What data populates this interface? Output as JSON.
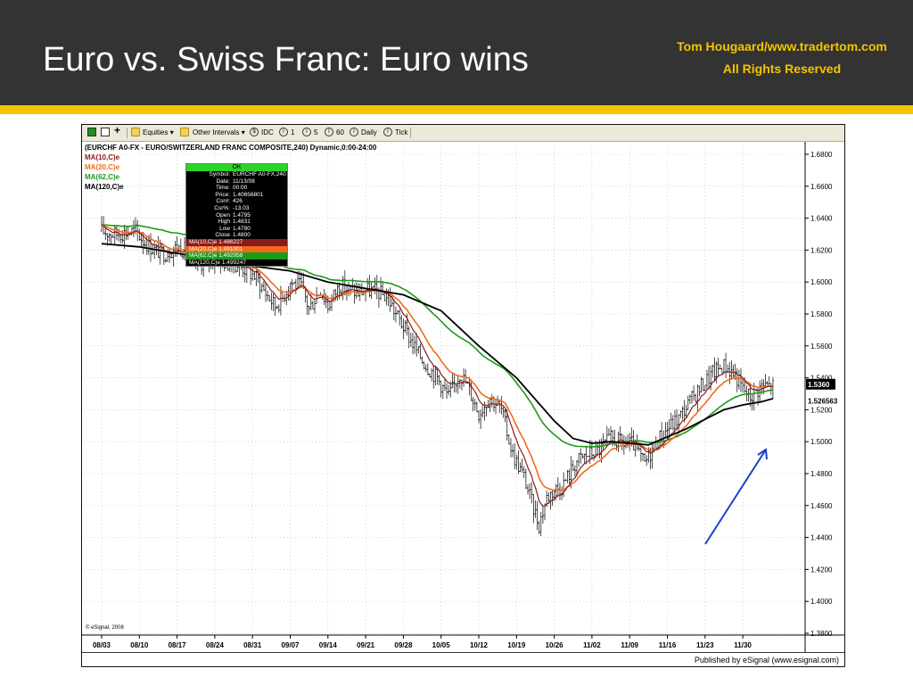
{
  "slide": {
    "title": "Euro vs. Swiss Franc: Euro wins",
    "credit_line1": "Tom Hougaard/www.tradertom.com",
    "credit_line2": "All Rights Reserved",
    "header_color": "#333333",
    "accent_color": "#f5c400"
  },
  "toolbar": {
    "items": [
      "Equities",
      "Other Intervals",
      "IDC",
      "1",
      "5",
      "60",
      "Daily",
      "Tick"
    ],
    "icons": [
      "chart-grid-icon",
      "layout-icon",
      "add-icon",
      "folder-icon",
      "folder-icon",
      "clock-icon"
    ]
  },
  "chart_data": {
    "type": "candlestick",
    "header": "(EURCHF A0-FX - EURO/SWITZERLAND FRANC COMPOSITE,240) Dynamic,0:00-24:00",
    "legend": [
      {
        "name": "MA(10,C)e",
        "color": "#8b1a1a"
      },
      {
        "name": "MA(20,C)e",
        "color": "#f26a1b"
      },
      {
        "name": "MA(62,C)e",
        "color": "#1a9b1a"
      },
      {
        "name": "MA(120,C)e",
        "color": "#000000"
      }
    ],
    "x_ticks": [
      "08/03",
      "08/10",
      "08/17",
      "08/24",
      "08/31",
      "09/07",
      "09/14",
      "09/21",
      "09/28",
      "10/05",
      "10/12",
      "10/19",
      "10/26",
      "11/02",
      "11/09",
      "11/16",
      "11/23",
      "11/30"
    ],
    "y_ticks": [
      "1.6800",
      "1.6600",
      "1.6400",
      "1.6200",
      "1.6000",
      "1.5800",
      "1.5600",
      "1.5400",
      "1.5200",
      "1.5000",
      "1.4800",
      "1.4600",
      "1.4400",
      "1.4200",
      "1.4000",
      "1.3800"
    ],
    "ylim": [
      1.38,
      1.69
    ],
    "grid": true,
    "price_labels": [
      "1.5360",
      "1.526563"
    ],
    "price_series": {
      "weeks": [
        0,
        0.3,
        0.6,
        0.9,
        1.1,
        1.4,
        1.7,
        2.0,
        2.2,
        2.5,
        2.7,
        2.9,
        3.0,
        3.3,
        3.6,
        3.8,
        4.1,
        4.3,
        4.6,
        4.8,
        5.0,
        5.3,
        5.5,
        5.8,
        6.0,
        6.3,
        6.6,
        6.8,
        7.0,
        7.3,
        7.6,
        7.8,
        8.1,
        8.4,
        8.6,
        8.9,
        9.2,
        9.5,
        9.7,
        10.0,
        10.3,
        10.6,
        10.9,
        11.2,
        11.4,
        11.6,
        11.8,
        12.0,
        12.2,
        12.4,
        12.6,
        12.9,
        13.2,
        13.5,
        13.8,
        14.1,
        14.4,
        14.7,
        15.0,
        15.3,
        15.6,
        15.9,
        16.2,
        16.5,
        16.8,
        17.0,
        17.2,
        17.5,
        17.8
      ],
      "close": [
        1.632,
        1.63,
        1.631,
        1.632,
        1.626,
        1.62,
        1.618,
        1.622,
        1.62,
        1.613,
        1.612,
        1.614,
        1.615,
        1.612,
        1.611,
        1.608,
        1.603,
        1.595,
        1.585,
        1.59,
        1.6,
        1.597,
        1.583,
        1.596,
        1.585,
        1.598,
        1.595,
        1.593,
        1.595,
        1.594,
        1.59,
        1.58,
        1.568,
        1.555,
        1.548,
        1.54,
        1.528,
        1.543,
        1.535,
        1.518,
        1.528,
        1.52,
        1.492,
        1.478,
        1.462,
        1.448,
        1.465,
        1.47,
        1.472,
        1.48,
        1.488,
        1.492,
        1.495,
        1.502,
        1.499,
        1.498,
        1.486,
        1.5,
        1.508,
        1.515,
        1.525,
        1.535,
        1.543,
        1.548,
        1.542,
        1.533,
        1.528,
        1.535,
        1.535
      ]
    },
    "ma120_series": {
      "weeks": [
        0,
        1,
        2,
        3,
        4,
        5,
        6,
        7,
        8,
        9,
        10,
        11,
        12,
        12.5,
        13,
        13.5,
        14,
        14.5,
        15,
        15.5,
        16,
        16.5,
        17,
        17.5,
        17.8
      ],
      "values": [
        1.624,
        1.622,
        1.618,
        1.614,
        1.61,
        1.607,
        1.6,
        1.596,
        1.592,
        1.582,
        1.56,
        1.54,
        1.513,
        1.502,
        1.499,
        1.5,
        1.499,
        1.498,
        1.503,
        1.508,
        1.514,
        1.52,
        1.523,
        1.525,
        1.527
      ]
    },
    "data_window": {
      "ok_label": "OK",
      "rows": [
        {
          "label": "Symbol:",
          "value": "EURCHF A0-FX,240"
        },
        {
          "label": "Date:",
          "value": "11/13/08"
        },
        {
          "label": "Time:",
          "value": "00:00"
        },
        {
          "label": "Price:",
          "value": "1.40656801"
        },
        {
          "label": "Csr#:",
          "value": "426"
        },
        {
          "label": "Csr%:",
          "value": "-13.03"
        },
        {
          "label": "Open",
          "value": "1.4795"
        },
        {
          "label": "High",
          "value": "1.4831"
        },
        {
          "label": "Low",
          "value": "1.4790"
        },
        {
          "label": "Close",
          "value": "1.4800"
        }
      ],
      "ma_rows": [
        {
          "text": "MA(10,C)e 1.486227",
          "color": "#8b1a1a"
        },
        {
          "text": "MA(20,C)e 1.491001",
          "color": "#f26a1b"
        },
        {
          "text": "MA(62,C)e 1.492958",
          "color": "#1a9b1a"
        },
        {
          "text": "MA(120,C)e 1.499247",
          "color": "#000000"
        }
      ]
    },
    "annotation": {
      "type": "arrow",
      "color": "#1e3fc8",
      "direction": "up-right"
    },
    "copyright": "© eSignal, 2008",
    "published": "Published by eSignal (www.esignal.com)"
  }
}
